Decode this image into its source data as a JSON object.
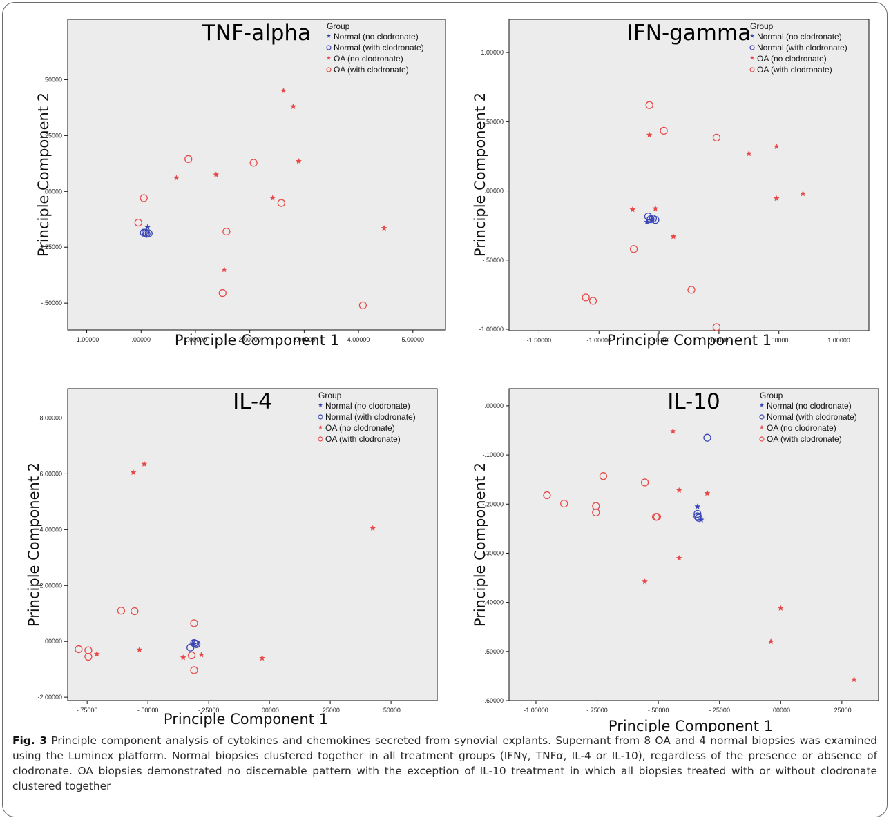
{
  "colors": {
    "normal": "#3a46b5",
    "oa": "#e84a4a",
    "plot_bg": "#ececec"
  },
  "caption": {
    "label": "Fig. 3",
    "text": "Principle component analysis of cytokines and chemokines secreted from synovial explants. Supernant from 8 OA and 4 normal biopsies was examined using the Luminex platform. Normal biopsies clustered together in all treatment groups (IFNγ, TNFα, IL-4 or IL-10), regardless of the presence or absence of clodronate. OA biopsies demonstrated no discernable pattern with the exception of IL-10 treatment in which all biopsies treated with or without clodronate clustered together"
  },
  "chart_data": [
    {
      "type": "scatter",
      "title": "TNF-alpha",
      "xlabel": "Principle Component 1",
      "ylabel": "Principle Component 2",
      "xlim": [
        -1.35,
        5.6
      ],
      "ylim": [
        -0.62,
        0.77
      ],
      "x_ticks": [
        -1,
        0,
        1,
        2,
        3,
        4,
        5
      ],
      "x_tick_labels": [
        "-1.00000",
        ".00000",
        "1.00000",
        "2.00000",
        "3.00000",
        "4.00000",
        "5.00000"
      ],
      "y_ticks": [
        -0.5,
        -0.25,
        0,
        0.25,
        0.5
      ],
      "y_tick_labels": [
        "-.50000",
        "-.25000",
        ".00000",
        ".25000",
        ".50000"
      ],
      "legend": {
        "title": "Group",
        "position": "top-right"
      },
      "series": [
        {
          "name": "Normal (no clodronate)",
          "marker": "star",
          "color": "normal",
          "points": [
            [
              0.12,
              -0.16
            ]
          ]
        },
        {
          "name": "Normal (with clodronate)",
          "marker": "circle",
          "color": "normal",
          "points": [
            [
              0.05,
              -0.185
            ],
            [
              0.08,
              -0.185
            ],
            [
              0.14,
              -0.188
            ],
            [
              0.1,
              -0.19
            ]
          ]
        },
        {
          "name": "OA (no clodronate)",
          "marker": "star",
          "color": "oa",
          "points": [
            [
              0.65,
              0.06
            ],
            [
              1.38,
              0.075
            ],
            [
              2.42,
              -0.03
            ],
            [
              2.62,
              0.45
            ],
            [
              2.8,
              0.38
            ],
            [
              2.9,
              0.135
            ],
            [
              1.53,
              -0.35
            ],
            [
              4.47,
              -0.165
            ]
          ]
        },
        {
          "name": "OA (with clodronate)",
          "marker": "circle",
          "color": "oa",
          "points": [
            [
              0.05,
              -0.03
            ],
            [
              -0.05,
              -0.14
            ],
            [
              0.87,
              0.145
            ],
            [
              2.07,
              0.128
            ],
            [
              2.58,
              -0.052
            ],
            [
              1.57,
              -0.18
            ],
            [
              1.5,
              -0.455
            ],
            [
              4.08,
              -0.51
            ]
          ]
        }
      ]
    },
    {
      "type": "scatter",
      "title": "IFN-gamma",
      "xlabel": "Principle Component 1",
      "ylabel": "Principle Component 2",
      "xlim": [
        -1.75,
        1.25
      ],
      "ylim": [
        -1.01,
        1.24
      ],
      "x_ticks": [
        -1.5,
        -1,
        -0.5,
        0,
        0.5,
        1
      ],
      "x_tick_labels": [
        "-1.50000",
        "-1.00000",
        "-.50000",
        ".00000",
        ".50000",
        "1.00000"
      ],
      "y_ticks": [
        -1,
        -0.5,
        0,
        0.5,
        1
      ],
      "y_tick_labels": [
        "-1.00000",
        "-.50000",
        ".00000",
        ".50000",
        "1.00000"
      ],
      "legend": {
        "title": "Group",
        "position": "top-right"
      },
      "series": [
        {
          "name": "Normal (no clodronate)",
          "marker": "star",
          "color": "normal",
          "points": [
            [
              -0.6,
              -0.225
            ],
            [
              -0.56,
              -0.21
            ]
          ]
        },
        {
          "name": "Normal (with clodronate)",
          "marker": "circle",
          "color": "normal",
          "points": [
            [
              -0.59,
              -0.185
            ],
            [
              -0.57,
              -0.205
            ],
            [
              -0.55,
              -0.2
            ],
            [
              -0.53,
              -0.21
            ]
          ]
        },
        {
          "name": "OA (no clodronate)",
          "marker": "star",
          "color": "oa",
          "points": [
            [
              -0.58,
              0.405
            ],
            [
              -0.72,
              -0.135
            ],
            [
              -0.53,
              -0.128
            ],
            [
              -0.38,
              -0.33
            ],
            [
              0.25,
              0.27
            ],
            [
              0.48,
              0.32
            ],
            [
              0.48,
              -0.055
            ],
            [
              0.7,
              -0.02
            ]
          ]
        },
        {
          "name": "OA (with clodronate)",
          "marker": "circle",
          "color": "oa",
          "points": [
            [
              -0.58,
              0.62
            ],
            [
              -0.46,
              0.435
            ],
            [
              -0.02,
              0.385
            ],
            [
              -0.71,
              -0.42
            ],
            [
              -0.23,
              -0.715
            ],
            [
              -1.11,
              -0.77
            ],
            [
              -1.05,
              -0.795
            ],
            [
              -0.02,
              -0.985
            ]
          ]
        }
      ]
    },
    {
      "type": "scatter",
      "title": "IL-4",
      "xlabel": "Principle Component 1",
      "ylabel": "Principle Component 2",
      "xlim": [
        -0.83,
        0.69
      ],
      "ylim": [
        -2.12,
        9.05
      ],
      "x_ticks": [
        -0.75,
        -0.5,
        -0.25,
        0,
        0.25,
        0.5
      ],
      "x_tick_labels": [
        "-.75000",
        "-.50000",
        "-.25000",
        ".00000",
        ".25000",
        ".50000"
      ],
      "y_ticks": [
        -2,
        0,
        2,
        4,
        6,
        8
      ],
      "y_tick_labels": [
        "-2.00000",
        ".00000",
        "2.00000",
        "4.00000",
        "6.00000",
        "8.00000"
      ],
      "legend": {
        "title": "Group",
        "position": "top-right"
      },
      "series": [
        {
          "name": "Normal (no clodronate)",
          "marker": "star",
          "color": "normal",
          "points": [
            [
              -0.31,
              -0.1
            ]
          ]
        },
        {
          "name": "Normal (with clodronate)",
          "marker": "circle",
          "color": "normal",
          "points": [
            [
              -0.325,
              -0.22
            ],
            [
              -0.31,
              -0.06
            ],
            [
              -0.3,
              -0.1
            ],
            [
              -0.305,
              -0.08
            ]
          ]
        },
        {
          "name": "OA (no clodronate)",
          "marker": "star",
          "color": "oa",
          "points": [
            [
              -0.56,
              6.05
            ],
            [
              -0.515,
              6.35
            ],
            [
              0.425,
              4.05
            ],
            [
              -0.71,
              -0.45
            ],
            [
              -0.535,
              -0.3
            ],
            [
              -0.355,
              -0.58
            ],
            [
              -0.28,
              -0.48
            ],
            [
              -0.03,
              -0.6
            ]
          ]
        },
        {
          "name": "OA (with clodronate)",
          "marker": "circle",
          "color": "oa",
          "points": [
            [
              -0.61,
              1.1
            ],
            [
              -0.555,
              1.08
            ],
            [
              -0.31,
              0.65
            ],
            [
              -0.785,
              -0.28
            ],
            [
              -0.745,
              -0.32
            ],
            [
              -0.745,
              -0.55
            ],
            [
              -0.32,
              -0.5
            ],
            [
              -0.31,
              -1.03
            ]
          ]
        }
      ]
    },
    {
      "type": "scatter",
      "title": "IL-10",
      "xlabel": "Principle Component 1",
      "ylabel": "Principle Component 2",
      "xlim": [
        -1.11,
        0.4
      ],
      "ylim": [
        -0.6,
        0.035
      ],
      "x_ticks": [
        -1,
        -0.75,
        -0.5,
        -0.25,
        0,
        0.25
      ],
      "x_tick_labels": [
        "-1.00000",
        "-.75000",
        "-.50000",
        "-.25000",
        ".00000",
        ".25000"
      ],
      "y_ticks": [
        -0.6,
        -0.5,
        -0.4,
        -0.3,
        -0.2,
        -0.1,
        0
      ],
      "y_tick_labels": [
        "-.60000",
        "-.50000",
        "-.40000",
        "-.30000",
        "-.20000",
        "-.10000",
        ".00000"
      ],
      "legend": {
        "title": "Group",
        "position": "top-right"
      },
      "series": [
        {
          "name": "Normal (no clodronate)",
          "marker": "star",
          "color": "normal",
          "points": [
            [
              -0.34,
              -0.205
            ],
            [
              -0.325,
              -0.232
            ]
          ]
        },
        {
          "name": "Normal (with clodronate)",
          "marker": "circle",
          "color": "normal",
          "points": [
            [
              -0.3,
              -0.065
            ],
            [
              -0.34,
              -0.22
            ],
            [
              -0.34,
              -0.225
            ],
            [
              -0.335,
              -0.228
            ]
          ]
        },
        {
          "name": "OA (no clodronate)",
          "marker": "star",
          "color": "oa",
          "points": [
            [
              -0.44,
              -0.052
            ],
            [
              -0.415,
              -0.172
            ],
            [
              -0.3,
              -0.178
            ],
            [
              -0.415,
              -0.31
            ],
            [
              -0.555,
              -0.358
            ],
            [
              0.0,
              -0.412
            ],
            [
              -0.04,
              -0.48
            ],
            [
              0.3,
              -0.557
            ]
          ]
        },
        {
          "name": "OA (with clodronate)",
          "marker": "circle",
          "color": "oa",
          "points": [
            [
              -0.955,
              -0.182
            ],
            [
              -0.885,
              -0.199
            ],
            [
              -0.725,
              -0.143
            ],
            [
              -0.755,
              -0.204
            ],
            [
              -0.755,
              -0.217
            ],
            [
              -0.555,
              -0.156
            ],
            [
              -0.51,
              -0.226
            ],
            [
              -0.505,
              -0.226
            ]
          ]
        }
      ]
    }
  ]
}
